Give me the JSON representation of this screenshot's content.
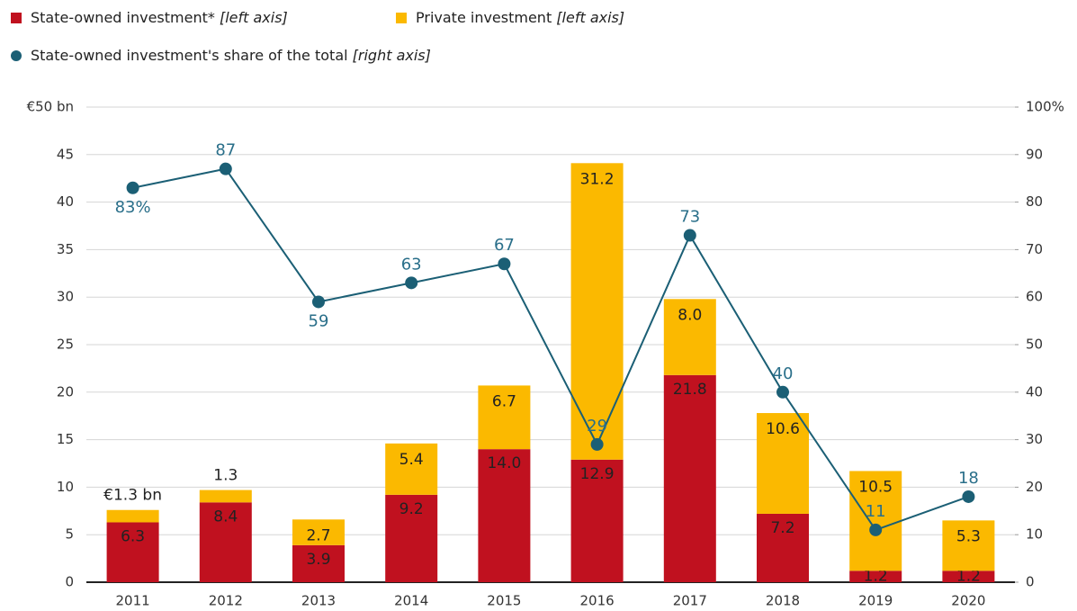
{
  "chart_data": {
    "type": "stacked-bar-line",
    "categories": [
      "2011",
      "2012",
      "2013",
      "2014",
      "2015",
      "2016",
      "2017",
      "2018",
      "2019",
      "2020"
    ],
    "series": [
      {
        "name": "State-owned investment* [left axis]",
        "color": "#c0111f",
        "values": [
          6.3,
          8.4,
          3.9,
          9.2,
          14.0,
          12.9,
          21.8,
          7.2,
          1.2,
          1.2
        ],
        "value_labels": [
          "6.3",
          "8.4",
          "3.9",
          "9.2",
          "14.0",
          "12.9",
          "21.8",
          "7.2",
          "1.2",
          "1.2"
        ]
      },
      {
        "name": "Private investment [left axis]",
        "color": "#fbb900",
        "values": [
          1.3,
          1.3,
          2.7,
          5.4,
          6.7,
          31.2,
          8.0,
          10.6,
          10.5,
          5.3
        ],
        "value_labels": [
          "€1.3 bn",
          "1.3",
          "2.7",
          "5.4",
          "6.7",
          "31.2",
          "8.0",
          "10.6",
          "10.5",
          "5.3"
        ]
      },
      {
        "name": "State-owned investment's share of the total [right axis]",
        "color": "#1b5f75",
        "axis": "y2",
        "values": [
          83,
          87,
          59,
          63,
          67,
          29,
          73,
          40,
          11,
          18
        ],
        "value_labels": [
          "83%",
          "87",
          "59",
          "63",
          "67",
          "29",
          "73",
          "40",
          "11",
          "18"
        ]
      }
    ],
    "ylim": [
      0,
      50
    ],
    "yticks": [
      0,
      5,
      10,
      15,
      20,
      25,
      30,
      35,
      40,
      45,
      {
        "value": 50,
        "label": "€50 bn"
      }
    ],
    "y2lim": [
      0,
      100
    ],
    "y2ticks": [
      0,
      10,
      20,
      30,
      40,
      50,
      60,
      70,
      80,
      90,
      {
        "value": 100,
        "label": "100%"
      }
    ],
    "grid": true
  }
}
